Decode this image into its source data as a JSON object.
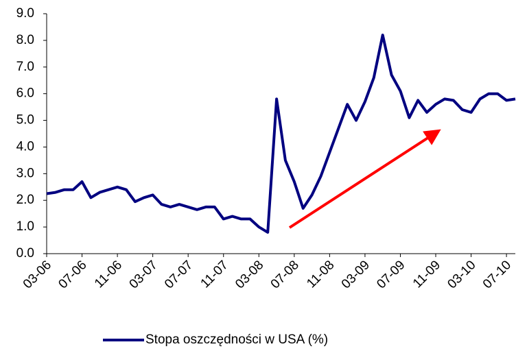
{
  "chart_data": {
    "type": "line",
    "categories": [
      "03-06",
      null,
      null,
      null,
      "07-06",
      null,
      null,
      null,
      "11-06",
      null,
      null,
      null,
      "03-07",
      null,
      null,
      null,
      "07-07",
      null,
      null,
      null,
      "11-07",
      null,
      null,
      null,
      "03-08",
      null,
      null,
      null,
      "07-08",
      null,
      null,
      null,
      "11-08",
      null,
      null,
      null,
      "03-09",
      null,
      null,
      null,
      "07-09",
      null,
      null,
      null,
      "11-09",
      null,
      null,
      null,
      "03-10",
      null,
      null,
      null,
      "07-10",
      null
    ],
    "series": [
      {
        "name": "Stopa oszczędności w USA (%)",
        "color": "#000080",
        "values": [
          2.25,
          2.3,
          2.4,
          2.4,
          2.7,
          2.1,
          2.3,
          2.4,
          2.5,
          2.4,
          1.95,
          2.1,
          2.2,
          1.85,
          1.75,
          1.85,
          1.75,
          1.65,
          1.75,
          1.75,
          1.3,
          1.4,
          1.3,
          1.3,
          1.0,
          0.8,
          5.8,
          3.5,
          2.7,
          1.7,
          2.2,
          2.9,
          3.8,
          4.7,
          5.6,
          5.0,
          5.7,
          6.6,
          8.2,
          6.7,
          6.1,
          5.1,
          5.75,
          5.3,
          5.6,
          5.8,
          5.75,
          5.4,
          5.3,
          5.8,
          6.0,
          6.0,
          5.75,
          5.8
        ]
      }
    ],
    "ylim": [
      0,
      9
    ],
    "yticks": [
      {
        "value": 0,
        "label": "0.0"
      },
      {
        "value": 1,
        "label": "1.0"
      },
      {
        "value": 2,
        "label": "2.0"
      },
      {
        "value": 3,
        "label": "3.0"
      },
      {
        "value": 4,
        "label": "4.0"
      },
      {
        "value": 5,
        "label": "5.0"
      },
      {
        "value": 6,
        "label": "6.0"
      },
      {
        "value": 7,
        "label": "7.0"
      },
      {
        "value": 8,
        "label": "8.0"
      },
      {
        "value": 9,
        "label": "9.0"
      }
    ],
    "grid": false,
    "legend": "bottom"
  }
}
